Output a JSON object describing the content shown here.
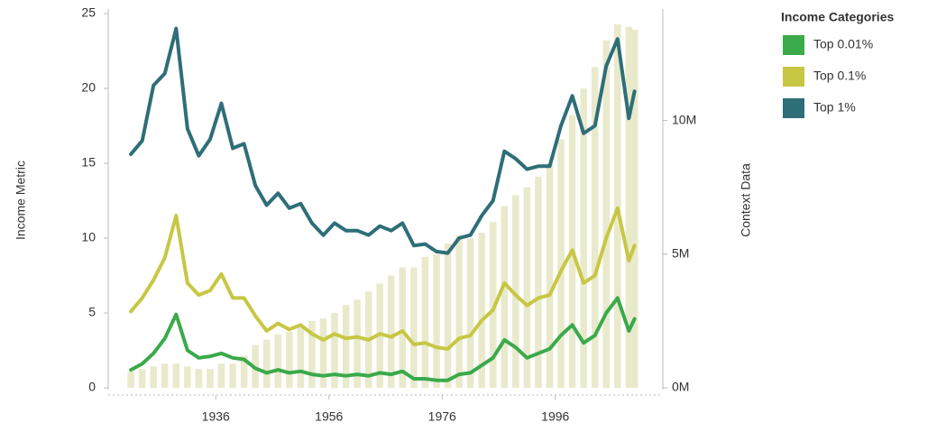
{
  "chart_data": {
    "type": "line",
    "y_label": "Income Metric",
    "y2_label": "Context Data",
    "legend_title": "Income Categories",
    "legend": "top-right",
    "grid": false,
    "x": [
      1921,
      1923,
      1925,
      1927,
      1929,
      1931,
      1933,
      1935,
      1937,
      1939,
      1941,
      1943,
      1945,
      1947,
      1949,
      1951,
      1953,
      1955,
      1957,
      1959,
      1961,
      1963,
      1965,
      1967,
      1969,
      1971,
      1973,
      1975,
      1977,
      1979,
      1981,
      1983,
      1985,
      1987,
      1989,
      1991,
      1993,
      1995,
      1997,
      1999,
      2001,
      2003,
      2005,
      2007,
      2009,
      2010
    ],
    "xlim": [
      1917,
      2015
    ],
    "xticks": [
      1936,
      1956,
      1976,
      1996
    ],
    "ylim": [
      0,
      25
    ],
    "yticks": [
      0,
      5,
      10,
      15,
      20,
      25
    ],
    "y2lim": [
      0,
      14000000
    ],
    "y2ticks": [
      {
        "value": 0,
        "label": "0M"
      },
      {
        "value": 5000000,
        "label": "5M"
      },
      {
        "value": 10000000,
        "label": "10M"
      }
    ],
    "series": [
      {
        "name": "Top 0.01%",
        "color": "#3aaa4a",
        "values": [
          1.2,
          1.6,
          2.3,
          3.3,
          4.9,
          2.5,
          2,
          2.1,
          2.3,
          2,
          1.9,
          1.3,
          1,
          1.2,
          1,
          1.1,
          0.9,
          0.8,
          0.9,
          0.8,
          0.9,
          0.8,
          1,
          0.9,
          1.1,
          0.6,
          0.6,
          0.5,
          0.5,
          0.9,
          1,
          1.5,
          2,
          3.2,
          2.7,
          2,
          2.3,
          2.6,
          3.5,
          4.2,
          3,
          3.5,
          5,
          6,
          3.8,
          4.6
        ]
      },
      {
        "name": "Top 0.1%",
        "color": "#c7c744",
        "values": [
          5.1,
          6,
          7.2,
          8.7,
          11.5,
          7,
          6.2,
          6.5,
          7.6,
          6,
          6,
          4.8,
          3.8,
          4.3,
          3.9,
          4.2,
          3.6,
          3.2,
          3.6,
          3.3,
          3.4,
          3.2,
          3.6,
          3.4,
          3.8,
          2.9,
          3,
          2.7,
          2.6,
          3.3,
          3.5,
          4.5,
          5.2,
          7,
          6.2,
          5.5,
          6,
          6.2,
          7.8,
          9.2,
          7,
          7.5,
          10,
          12,
          8.5,
          9.5
        ]
      },
      {
        "name": "Top 1%",
        "color": "#2e6e78",
        "values": [
          15.6,
          16.5,
          20.2,
          21,
          24,
          17.3,
          15.5,
          16.6,
          19,
          16,
          16.3,
          13.5,
          12.2,
          13,
          12,
          12.3,
          11,
          10.2,
          11,
          10.5,
          10.5,
          10.2,
          10.8,
          10.5,
          11,
          9.5,
          9.6,
          9.1,
          9,
          10,
          10.2,
          11.5,
          12.5,
          15.8,
          15.3,
          14.6,
          14.8,
          14.8,
          17.5,
          19.5,
          17,
          17.5,
          21.5,
          23.3,
          18,
          19.8
        ]
      },
      {
        "type": "bar",
        "axis": "y2",
        "color": "#e9e9cc",
        "values": [
          600000,
          700000,
          800000,
          900000,
          900000,
          800000,
          700000,
          700000,
          900000,
          900000,
          1200000,
          1600000,
          1800000,
          2000000,
          2100000,
          2300000,
          2500000,
          2600000,
          2800000,
          3100000,
          3300000,
          3600000,
          3900000,
          4200000,
          4500000,
          4500000,
          4900000,
          5000000,
          5400000,
          5700000,
          5600000,
          5800000,
          6200000,
          6800000,
          7200000,
          7500000,
          7900000,
          8400000,
          9300000,
          10200000,
          11200000,
          12000000,
          13000000,
          13600000,
          13500000,
          13400000
        ]
      }
    ]
  }
}
